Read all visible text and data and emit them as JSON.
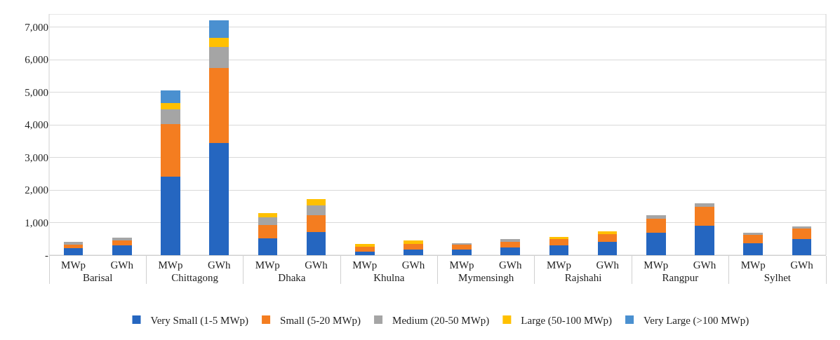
{
  "chart_data": {
    "type": "bar",
    "stacked": true,
    "categories": [
      "MWp",
      "GWh",
      "MWp",
      "GWh",
      "MWp",
      "GWh",
      "MWp",
      "GWh",
      "MWp",
      "GWh",
      "MWp",
      "GWh",
      "MWp",
      "GWh",
      "MWp",
      "GWh"
    ],
    "annotations": [
      "Barisal",
      "Chittagong",
      "Dhaka",
      "Khulna",
      "Mymensingh",
      "Rajshahi",
      "Rangpur",
      "Sylhet"
    ],
    "series": [
      {
        "name": "Very Small (1-5 MWp)",
        "color": "#2566c0",
        "values": [
          220,
          300,
          2420,
          3440,
          520,
          700,
          110,
          170,
          180,
          240,
          300,
          410,
          690,
          910,
          370,
          490
        ]
      },
      {
        "name": "Small (5-20 MWp)",
        "color": "#f47d20",
        "values": [
          100,
          150,
          1610,
          2310,
          400,
          520,
          150,
          170,
          150,
          170,
          190,
          240,
          430,
          580,
          250,
          330
        ]
      },
      {
        "name": "Medium (20-50 MWp)",
        "color": "#a5a5a5",
        "values": [
          80,
          90,
          450,
          630,
          240,
          310,
          null,
          null,
          40,
          80,
          null,
          null,
          110,
          110,
          60,
          70
        ]
      },
      {
        "name": "Large (50-100 MWp)",
        "color": "#ffc000",
        "values": [
          null,
          null,
          190,
          290,
          140,
          190,
          80,
          110,
          null,
          null,
          80,
          80,
          null,
          null,
          null,
          null
        ]
      },
      {
        "name": "Very Large (>100 MWp)",
        "color": "#4a90d0",
        "values": [
          null,
          null,
          390,
          540,
          null,
          null,
          null,
          null,
          null,
          null,
          null,
          null,
          null,
          null,
          null,
          null
        ]
      }
    ],
    "ylim": [
      0,
      7400
    ],
    "yticks": [
      {
        "value": 0,
        "label": "-"
      },
      {
        "value": 1000,
        "label": "1,000"
      },
      {
        "value": 2000,
        "label": "2,000"
      },
      {
        "value": 3000,
        "label": "3,000"
      },
      {
        "value": 4000,
        "label": "4,000"
      },
      {
        "value": 5000,
        "label": "5,000"
      },
      {
        "value": 6000,
        "label": "6,000"
      },
      {
        "value": 7000,
        "label": "7,000"
      }
    ],
    "grid": "y",
    "legend": "bottom"
  }
}
